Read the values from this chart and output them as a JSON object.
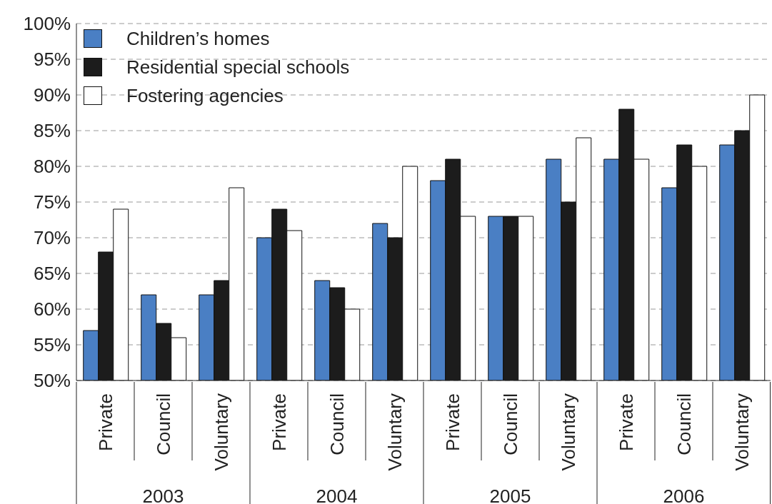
{
  "chart_data": {
    "type": "bar",
    "categories": [
      "Private",
      "Council",
      "Voluntary",
      "Private",
      "Council",
      "Voluntary",
      "Private",
      "Council",
      "Voluntary",
      "Private",
      "Council",
      "Voluntary"
    ],
    "annotations": [
      "2003",
      "2004",
      "2005",
      "2006"
    ],
    "series": [
      {
        "name": "Children’s homes",
        "color": "#4a7fc4",
        "values": [
          57,
          62,
          62,
          70,
          64,
          72,
          78,
          73,
          81,
          81,
          77,
          83
        ]
      },
      {
        "name": "Residential special schools",
        "color": "#1c1c1c",
        "values": [
          68,
          58,
          64,
          74,
          63,
          70,
          81,
          73,
          75,
          88,
          83,
          85
        ]
      },
      {
        "name": "Fostering agencies",
        "color": "#ffffff",
        "values": [
          74,
          56,
          77,
          71,
          60,
          80,
          73,
          73,
          84,
          81,
          80,
          90
        ]
      }
    ],
    "ylim": [
      50,
      100
    ],
    "yticks": [
      {
        "value": 50,
        "label": "50%"
      },
      {
        "value": 55,
        "label": "55%"
      },
      {
        "value": 60,
        "label": "60%"
      },
      {
        "value": 65,
        "label": "65%"
      },
      {
        "value": 70,
        "label": "70%"
      },
      {
        "value": 75,
        "label": "75%"
      },
      {
        "value": 80,
        "label": "80%"
      },
      {
        "value": 85,
        "label": "85%"
      },
      {
        "value": 90,
        "label": "90%"
      },
      {
        "value": 95,
        "label": "95%"
      },
      {
        "value": 100,
        "label": "100%"
      }
    ],
    "grid": "y",
    "legend": "top left"
  }
}
